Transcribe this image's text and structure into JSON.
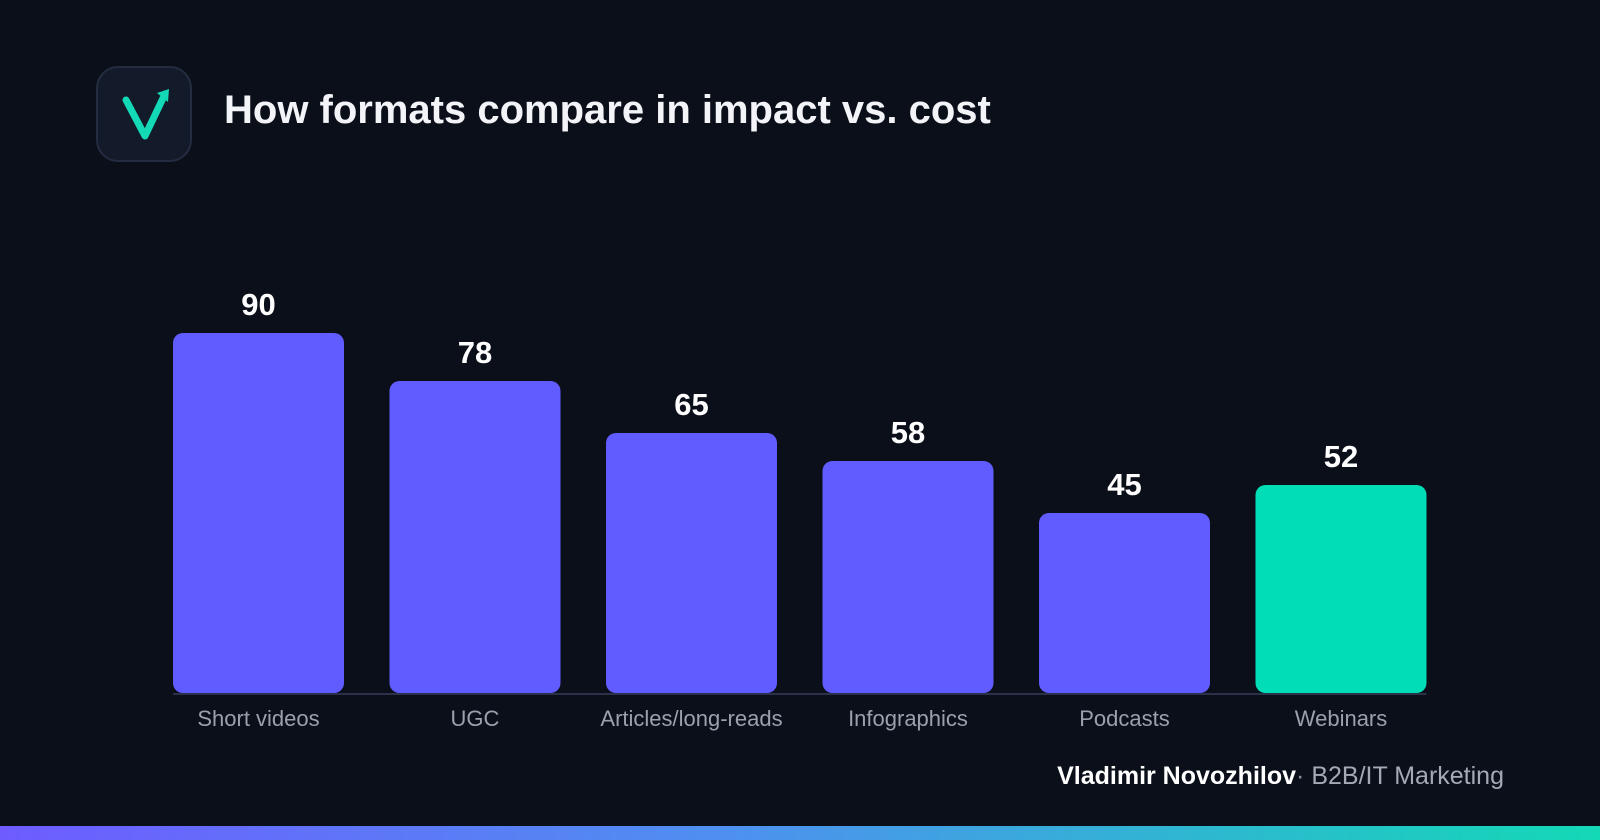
{
  "header": {
    "title": "How formats compare in impact vs. cost",
    "logo_icon": "checkmark-arrow-icon"
  },
  "colors": {
    "background": "#0b0f1a",
    "bar_default": "#615cff",
    "bar_highlight": "#00ddb7",
    "baseline": "#2b3148"
  },
  "chart_data": {
    "type": "bar",
    "categories": [
      "Short videos",
      "UGC",
      "Articles/long-reads",
      "Infographics",
      "Podcasts",
      "Webinars"
    ],
    "values": [
      90,
      78,
      65,
      58,
      45,
      52
    ],
    "highlight_index": 5,
    "title": "How formats compare in impact vs. cost",
    "xlabel": "",
    "ylabel": "",
    "ylim": [
      0,
      90
    ],
    "grid": false,
    "data_labels": true
  },
  "footer": {
    "author": "Vladimir Novozhilov",
    "separator": "·",
    "tagline": "B2B/IT Marketing"
  }
}
